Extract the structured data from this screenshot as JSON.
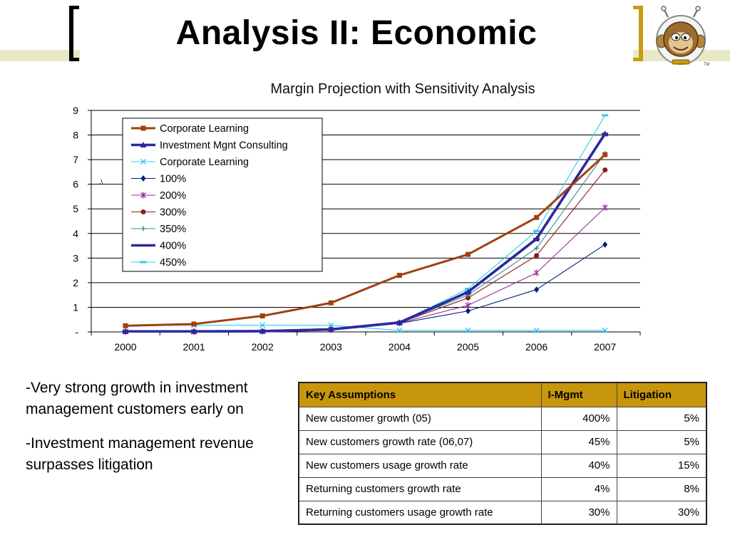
{
  "slide": {
    "title": "Analysis II: Economic",
    "colors": {
      "accent": "#c89b10",
      "band": "#e7e8c5",
      "table_header": "#c8960c"
    }
  },
  "logo": {
    "icon": "monkey-astronaut-logo",
    "mark": "TM"
  },
  "chart_data": {
    "type": "line",
    "title": "Margin Projection with Sensitivity Analysis",
    "categories": [
      "2000",
      "2001",
      "2002",
      "2003",
      "2004",
      "2005",
      "2006",
      "2007"
    ],
    "y_ticks": [
      "-",
      "1",
      "2",
      "3",
      "4",
      "5",
      "6",
      "7",
      "8",
      "9"
    ],
    "ylim": [
      0,
      9
    ],
    "grid": true,
    "legend_position": "top-left",
    "stray_label": ".\\",
    "series": [
      {
        "name": "Corporate Learning",
        "color": "#a0410d",
        "marker": "square",
        "values": [
          0.25,
          0.32,
          0.65,
          1.18,
          2.3,
          3.15,
          4.65,
          7.2
        ]
      },
      {
        "name": "Investment Mgnt Consulting",
        "color": "#2a2aa0",
        "marker": "triangle",
        "values": [
          0.02,
          0.02,
          0.03,
          0.1,
          0.38,
          1.62,
          3.78,
          8.05
        ]
      },
      {
        "name": "Corporate Learning",
        "color": "#33ccee",
        "marker": "x",
        "values": [
          0.25,
          0.27,
          0.27,
          0.27,
          0.06,
          0.06,
          0.06,
          0.06
        ]
      },
      {
        "name": "100%",
        "color": "#00207a",
        "marker": "diamond",
        "values": [
          0.01,
          0.01,
          0.02,
          0.08,
          0.35,
          0.85,
          1.72,
          3.55
        ]
      },
      {
        "name": "200%",
        "color": "#9b2e9b",
        "marker": "star",
        "values": [
          0.01,
          0.01,
          0.02,
          0.09,
          0.36,
          1.08,
          2.4,
          5.05
        ]
      },
      {
        "name": "300%",
        "color": "#8b1a1a",
        "marker": "circle",
        "values": [
          0.01,
          0.01,
          0.02,
          0.1,
          0.37,
          1.38,
          3.1,
          6.58
        ]
      },
      {
        "name": "350%",
        "color": "#3a8f8f",
        "marker": "plus",
        "values": [
          0.01,
          0.01,
          0.02,
          0.1,
          0.37,
          1.5,
          3.4,
          7.25
        ]
      },
      {
        "name": "400%",
        "color": "#2a2aa0",
        "marker": "dash",
        "values": [
          0.02,
          0.02,
          0.03,
          0.1,
          0.38,
          1.62,
          3.78,
          8.05
        ]
      },
      {
        "name": "450%",
        "color": "#2fcfe6",
        "marker": "dash",
        "values": [
          0.02,
          0.02,
          0.03,
          0.11,
          0.39,
          1.75,
          4.1,
          8.8
        ]
      }
    ]
  },
  "bullets": [
    "-Very strong growth in investment management customers early on",
    "-Investment management revenue surpasses litigation"
  ],
  "table": {
    "headers": [
      "Key Assumptions",
      "I-Mgmt",
      "Litigation"
    ],
    "rows": [
      [
        "New customer growth (05)",
        "400%",
        "5%"
      ],
      [
        "New customers growth rate (06,07)",
        "45%",
        "5%"
      ],
      [
        "New customers usage growth rate",
        "40%",
        "15%"
      ],
      [
        "Returning customers growth rate",
        "4%",
        "8%"
      ],
      [
        "Returning customers usage growth rate",
        "30%",
        "30%"
      ]
    ]
  }
}
